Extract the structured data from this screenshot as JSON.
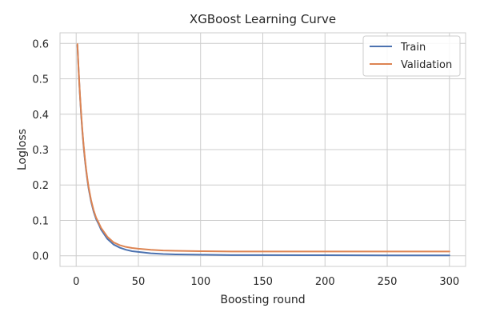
{
  "chart_data": {
    "type": "line",
    "title": "XGBoost Learning Curve",
    "xlabel": "Boosting round",
    "ylabel": "Logloss",
    "xlim": [
      -13,
      313
    ],
    "ylim": [
      -0.03,
      0.63
    ],
    "xticks": [
      0,
      50,
      100,
      150,
      200,
      250,
      300
    ],
    "yticks": [
      0.0,
      0.1,
      0.2,
      0.3,
      0.4,
      0.5,
      0.6
    ],
    "ytick_labels": [
      "0.0",
      "0.1",
      "0.2",
      "0.3",
      "0.4",
      "0.5",
      "0.6"
    ],
    "grid": true,
    "legend_position": "top-right",
    "series": [
      {
        "name": "Train",
        "color": "#4c72b0",
        "x": [
          1,
          2,
          3,
          4,
          5,
          6,
          7,
          8,
          9,
          10,
          12,
          14,
          16,
          18,
          20,
          25,
          30,
          35,
          40,
          45,
          50,
          60,
          70,
          80,
          100,
          125,
          150,
          200,
          250,
          300
        ],
        "y": [
          0.595,
          0.52,
          0.455,
          0.398,
          0.35,
          0.308,
          0.272,
          0.241,
          0.214,
          0.19,
          0.153,
          0.125,
          0.104,
          0.09,
          0.074,
          0.048,
          0.032,
          0.023,
          0.017,
          0.013,
          0.011,
          0.007,
          0.005,
          0.004,
          0.003,
          0.002,
          0.002,
          0.0015,
          0.001,
          0.001
        ]
      },
      {
        "name": "Validation",
        "color": "#dd8452",
        "x": [
          1,
          2,
          3,
          4,
          5,
          6,
          7,
          8,
          9,
          10,
          12,
          14,
          16,
          18,
          20,
          25,
          30,
          35,
          40,
          45,
          50,
          60,
          70,
          80,
          100,
          125,
          150,
          200,
          250,
          300
        ],
        "y": [
          0.598,
          0.523,
          0.458,
          0.402,
          0.354,
          0.312,
          0.276,
          0.245,
          0.218,
          0.194,
          0.157,
          0.129,
          0.108,
          0.094,
          0.079,
          0.054,
          0.038,
          0.03,
          0.025,
          0.022,
          0.02,
          0.017,
          0.015,
          0.014,
          0.013,
          0.012,
          0.012,
          0.012,
          0.012,
          0.012
        ]
      }
    ]
  }
}
